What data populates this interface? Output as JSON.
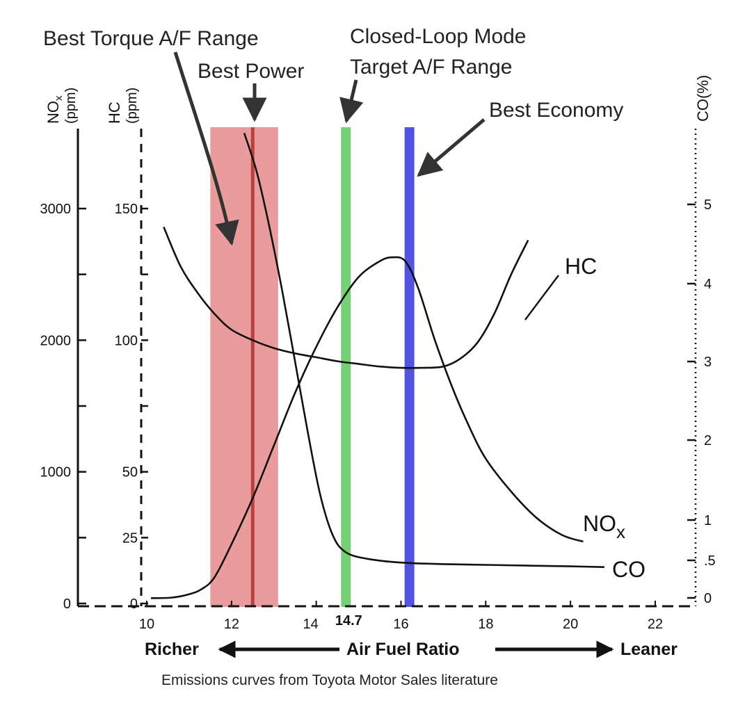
{
  "chart_data": {
    "type": "line",
    "caption": "Emissions curves from Toyota Motor Sales literature",
    "x_axis": {
      "title": "Air Fuel Ratio",
      "left_label": "Richer",
      "right_label": "Leaner",
      "range": [
        10,
        23
      ],
      "ticks": [
        "10",
        "12",
        "14",
        "14.7",
        "16",
        "18",
        "20",
        "22"
      ]
    },
    "axes": {
      "nox": {
        "label": "NO",
        "sub": "x",
        "unit": "(ppm)",
        "range": [
          0,
          3500
        ],
        "ticks": [
          "3000",
          "2000",
          "1000",
          "0"
        ]
      },
      "hc": {
        "label": "HC",
        "unit": "(ppm)",
        "range": [
          0,
          175
        ],
        "ticks": [
          "150",
          "100",
          "50",
          "25",
          "0"
        ]
      },
      "co": {
        "label": "CO(%)",
        "range": [
          0,
          6
        ],
        "ticks": [
          "5",
          "4",
          "3",
          "2",
          "1",
          ".5",
          "0"
        ]
      }
    },
    "bands": [
      {
        "name": "Best Torque A/F Range",
        "from": 11.5,
        "to": 13.1,
        "color": "#e89090"
      },
      {
        "name": "Best Power",
        "at": 12.5,
        "color": "#b03030"
      },
      {
        "name": "Closed-Loop Mode Target A/F Range",
        "at": 14.7,
        "color": "#70cc70"
      },
      {
        "name": "Best Economy",
        "at": 16.2,
        "color": "#4a4ae0"
      }
    ],
    "annotations": {
      "best_torque": "Best Torque A/F Range",
      "best_power": "Best Power",
      "closed_loop_1": "Closed-Loop Mode",
      "closed_loop_2": "Target A/F Range",
      "best_economy": "Best Economy"
    },
    "series": [
      {
        "name": "HC",
        "axis": "hc",
        "x": [
          10.4,
          10.8,
          11.2,
          11.6,
          12.0,
          12.5,
          13.0,
          13.5,
          14.0,
          14.5,
          15.0,
          15.5,
          16.0,
          16.5,
          17.0,
          17.4,
          17.8,
          18.2,
          18.6,
          19.0
        ],
        "y": [
          143,
          128,
          118,
          110,
          104,
          100,
          97,
          95,
          93.5,
          92,
          91,
          90,
          89.5,
          89.5,
          90,
          93,
          99,
          110,
          125,
          138
        ]
      },
      {
        "name": "NO",
        "sub": "x",
        "axis": "nox",
        "x": [
          10.1,
          10.6,
          11.0,
          11.3,
          11.6,
          12.0,
          12.5,
          13.0,
          13.5,
          14.0,
          14.5,
          15.0,
          15.5,
          15.8,
          16.1,
          16.4,
          16.8,
          17.2,
          17.6,
          18.0,
          18.6,
          19.2,
          19.8,
          20.3
        ],
        "y": [
          40,
          45,
          70,
          110,
          200,
          450,
          800,
          1200,
          1600,
          1950,
          2250,
          2480,
          2600,
          2630,
          2600,
          2400,
          2000,
          1650,
          1350,
          1100,
          850,
          650,
          520,
          470
        ]
      },
      {
        "name": "CO",
        "axis": "co",
        "x": [
          12.3,
          12.6,
          12.9,
          13.2,
          13.5,
          13.8,
          14.1,
          14.4,
          14.7,
          15.2,
          16.0,
          17.0,
          18.0,
          19.0,
          20.0,
          20.8
        ],
        "y": [
          5.9,
          5.4,
          4.7,
          3.9,
          3.0,
          2.1,
          1.3,
          0.8,
          0.6,
          0.52,
          0.47,
          0.45,
          0.44,
          0.43,
          0.42,
          0.41
        ]
      }
    ]
  }
}
